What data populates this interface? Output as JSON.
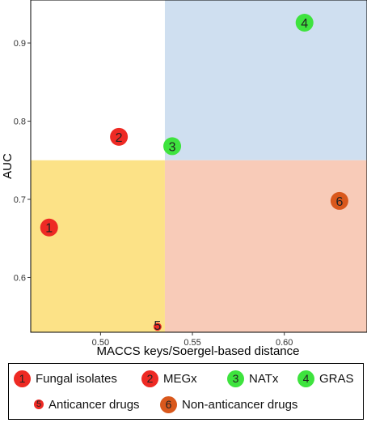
{
  "chart_data": {
    "type": "scatter",
    "xlabel": "MACCS keys/Soergel-based distance",
    "ylabel": "AUC",
    "xlim": [
      0.462,
      0.645
    ],
    "ylim": [
      0.53,
      0.955
    ],
    "x_ticks": [
      {
        "value": 0.5,
        "label": "0.50"
      },
      {
        "value": 0.55,
        "label": "0.55"
      },
      {
        "value": 0.6,
        "label": "0.60"
      }
    ],
    "y_ticks": [
      {
        "value": 0.6,
        "label": "0.6"
      },
      {
        "value": 0.7,
        "label": "0.7"
      },
      {
        "value": 0.8,
        "label": "0.8"
      },
      {
        "value": 0.9,
        "label": "0.9"
      }
    ],
    "grid": false,
    "legend_position": "bottom",
    "quadrant_split": {
      "x": 0.535,
      "y": 0.75
    },
    "quadrant_colors": {
      "top_left": "#ffffff",
      "top_right": "#cfdff0",
      "bottom_left": "#fce287",
      "bottom_right": "#f8cbb8"
    },
    "series": [
      {
        "name": "Fungal isolates",
        "label": "1",
        "color": "#ee2a24",
        "size": "large",
        "x": 0.472,
        "y": 0.664
      },
      {
        "name": "MEGx",
        "label": "2",
        "color": "#ee2a24",
        "size": "large",
        "x": 0.51,
        "y": 0.78
      },
      {
        "name": "NATx",
        "label": "3",
        "color": "#3ee33e",
        "size": "large",
        "x": 0.539,
        "y": 0.768
      },
      {
        "name": "GRAS",
        "label": "4",
        "color": "#3ee33e",
        "size": "large",
        "x": 0.611,
        "y": 0.926
      },
      {
        "name": "Anticancer drugs",
        "label": "5",
        "color": "#ee2a24",
        "size": "small",
        "x": 0.531,
        "y": 0.537
      },
      {
        "name": "Non-anticancer drugs",
        "label": "6",
        "color": "#d9581c",
        "size": "large",
        "x": 0.63,
        "y": 0.698
      }
    ]
  }
}
